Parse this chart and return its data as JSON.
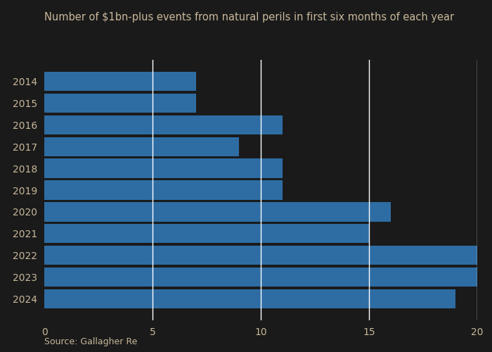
{
  "title": "Number of $1bn-plus events from natural perils in first six months of each year",
  "source": "Source: Gallagher Re",
  "categories": [
    "2014",
    "2015",
    "2016",
    "2017",
    "2018",
    "2019",
    "2020",
    "2021",
    "2022",
    "2023",
    "2024"
  ],
  "values": [
    7,
    7,
    11,
    9,
    11,
    11,
    16,
    15,
    20,
    20,
    19
  ],
  "bar_color": "#2E6DA4",
  "xlim": [
    0,
    20
  ],
  "xticks": [
    0,
    5,
    10,
    15,
    20
  ],
  "background_color": "#1a1a1a",
  "title_color": "#c8b89a",
  "tick_color": "#c8b89a",
  "source_color": "#c8b89a",
  "grid_color": "#ffffff",
  "title_fontsize": 10.5,
  "source_fontsize": 9,
  "tick_fontsize": 10,
  "bar_height": 0.88
}
